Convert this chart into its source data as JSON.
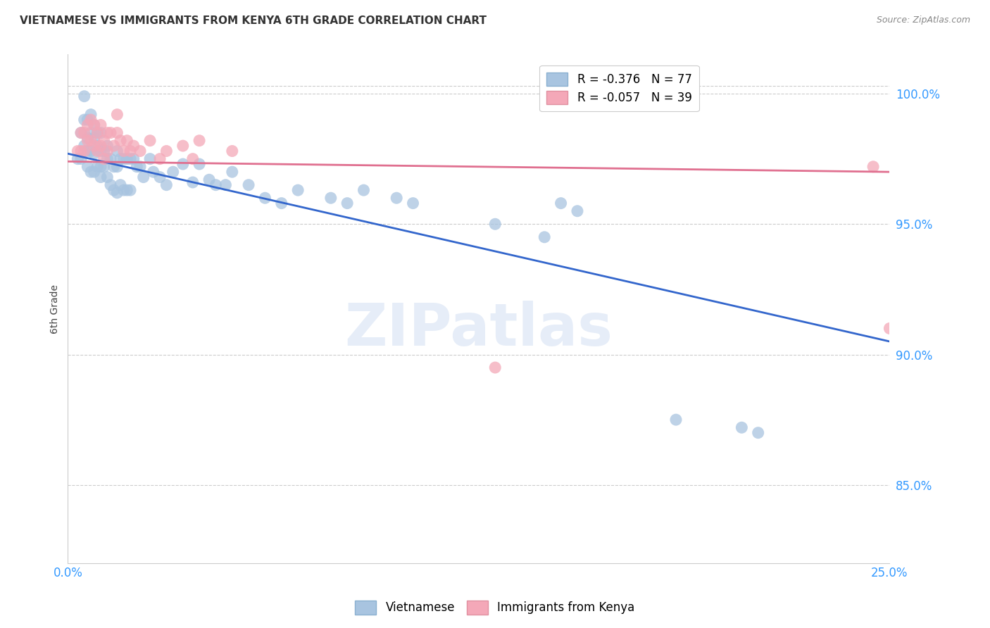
{
  "title": "VIETNAMESE VS IMMIGRANTS FROM KENYA 6TH GRADE CORRELATION CHART",
  "source_text": "Source: ZipAtlas.com",
  "ylabel_label": "6th Grade",
  "xlim": [
    0.0,
    0.25
  ],
  "ylim": [
    0.82,
    1.015
  ],
  "yticks": [
    0.85,
    0.9,
    0.95,
    1.0
  ],
  "ytick_labels": [
    "85.0%",
    "90.0%",
    "95.0%",
    "100.0%"
  ],
  "xticks": [
    0.0,
    0.05,
    0.1,
    0.15,
    0.2,
    0.25
  ],
  "xtick_labels": [
    "0.0%",
    "",
    "",
    "",
    "",
    "25.0%"
  ],
  "blue_color": "#a8c4e0",
  "pink_color": "#f4a8b8",
  "blue_line_color": "#3366cc",
  "pink_line_color": "#e07090",
  "legend_blue_label": "R = -0.376   N = 77",
  "legend_pink_label": "R = -0.057   N = 39",
  "legend1_label": "Vietnamese",
  "legend2_label": "Immigrants from Kenya",
  "watermark": "ZIPatlas",
  "blue_line_x0": 0.0,
  "blue_line_y0": 0.977,
  "blue_line_x1": 0.25,
  "blue_line_y1": 0.905,
  "pink_line_x0": 0.0,
  "pink_line_y0": 0.974,
  "pink_line_x1": 0.25,
  "pink_line_y1": 0.97,
  "blue_x": [
    0.003,
    0.004,
    0.004,
    0.005,
    0.005,
    0.005,
    0.006,
    0.006,
    0.006,
    0.006,
    0.007,
    0.007,
    0.007,
    0.007,
    0.008,
    0.008,
    0.008,
    0.008,
    0.009,
    0.009,
    0.009,
    0.01,
    0.01,
    0.01,
    0.01,
    0.011,
    0.011,
    0.012,
    0.012,
    0.012,
    0.013,
    0.013,
    0.014,
    0.014,
    0.015,
    0.015,
    0.015,
    0.016,
    0.016,
    0.017,
    0.017,
    0.018,
    0.018,
    0.019,
    0.019,
    0.02,
    0.021,
    0.022,
    0.023,
    0.025,
    0.026,
    0.028,
    0.03,
    0.032,
    0.035,
    0.038,
    0.04,
    0.043,
    0.045,
    0.048,
    0.05,
    0.055,
    0.06,
    0.065,
    0.07,
    0.08,
    0.085,
    0.09,
    0.1,
    0.105,
    0.13,
    0.145,
    0.15,
    0.155,
    0.185,
    0.205,
    0.21
  ],
  "blue_y": [
    0.975,
    0.985,
    0.975,
    0.999,
    0.99,
    0.98,
    0.99,
    0.983,
    0.978,
    0.972,
    0.992,
    0.985,
    0.978,
    0.97,
    0.988,
    0.983,
    0.977,
    0.97,
    0.985,
    0.98,
    0.972,
    0.985,
    0.978,
    0.972,
    0.968,
    0.978,
    0.972,
    0.98,
    0.975,
    0.968,
    0.975,
    0.965,
    0.972,
    0.963,
    0.978,
    0.972,
    0.962,
    0.975,
    0.965,
    0.975,
    0.963,
    0.975,
    0.963,
    0.975,
    0.963,
    0.975,
    0.972,
    0.972,
    0.968,
    0.975,
    0.97,
    0.968,
    0.965,
    0.97,
    0.973,
    0.966,
    0.973,
    0.967,
    0.965,
    0.965,
    0.97,
    0.965,
    0.96,
    0.958,
    0.963,
    0.96,
    0.958,
    0.963,
    0.96,
    0.958,
    0.95,
    0.945,
    0.958,
    0.955,
    0.875,
    0.872,
    0.87
  ],
  "pink_x": [
    0.003,
    0.004,
    0.004,
    0.005,
    0.005,
    0.006,
    0.006,
    0.007,
    0.007,
    0.008,
    0.008,
    0.009,
    0.009,
    0.01,
    0.01,
    0.011,
    0.011,
    0.012,
    0.012,
    0.013,
    0.014,
    0.015,
    0.015,
    0.016,
    0.017,
    0.018,
    0.019,
    0.02,
    0.022,
    0.025,
    0.028,
    0.03,
    0.035,
    0.038,
    0.04,
    0.05,
    0.13,
    0.245,
    0.25
  ],
  "pink_y": [
    0.978,
    0.985,
    0.978,
    0.985,
    0.978,
    0.988,
    0.982,
    0.99,
    0.982,
    0.988,
    0.98,
    0.985,
    0.978,
    0.988,
    0.98,
    0.982,
    0.975,
    0.985,
    0.978,
    0.985,
    0.98,
    0.992,
    0.985,
    0.982,
    0.978,
    0.982,
    0.978,
    0.98,
    0.978,
    0.982,
    0.975,
    0.978,
    0.98,
    0.975,
    0.982,
    0.978,
    0.895,
    0.972,
    0.91
  ]
}
